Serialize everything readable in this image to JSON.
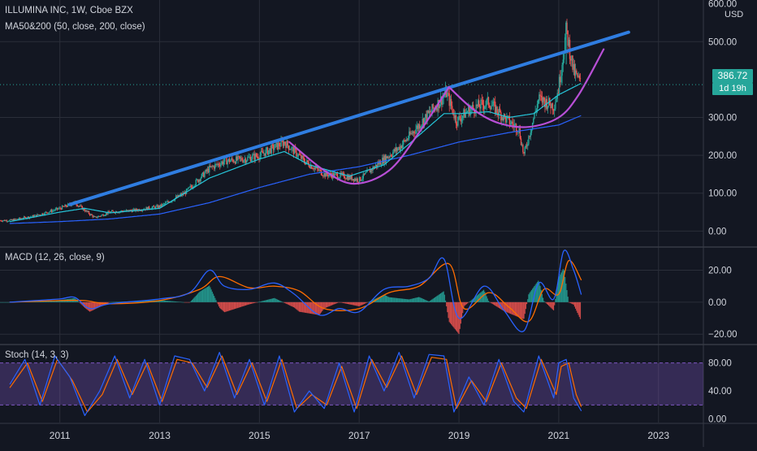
{
  "chart_data": [
    {
      "type": "candlestick",
      "pane": "price",
      "title": "ILLUMINA INC, 1W, Cboe BZX",
      "indicator": "MA50&200 (50, close, 200, close)",
      "currency": "USD",
      "y_ticks": [
        "0.00",
        "100.00",
        "200.00",
        "300.00",
        "500.00"
      ],
      "y_top_partial": "600.00",
      "ylim": [
        -40,
        610
      ],
      "last_price": "386.72",
      "countdown": "1d 19h",
      "colors": {
        "up": "#26a69a",
        "down": "#ef5350",
        "ma50": "#26c6da",
        "ma200": "#2962ff",
        "trendline": "#2f7de1",
        "arc": "#b84fd6"
      },
      "price_path": [
        [
          2010.0,
          28
        ],
        [
          2010.5,
          40
        ],
        [
          2011.0,
          60
        ],
        [
          2011.3,
          75
        ],
        [
          2011.5,
          55
        ],
        [
          2011.7,
          35
        ],
        [
          2012.0,
          50
        ],
        [
          2012.5,
          55
        ],
        [
          2013.0,
          65
        ],
        [
          2013.5,
          100
        ],
        [
          2014.0,
          165
        ],
        [
          2014.3,
          185
        ],
        [
          2014.7,
          190
        ],
        [
          2015.0,
          200
        ],
        [
          2015.5,
          235
        ],
        [
          2015.9,
          185
        ],
        [
          2016.3,
          150
        ],
        [
          2016.7,
          145
        ],
        [
          2017.0,
          135
        ],
        [
          2017.4,
          180
        ],
        [
          2017.8,
          220
        ],
        [
          2018.2,
          280
        ],
        [
          2018.6,
          340
        ],
        [
          2018.75,
          365
        ],
        [
          2018.95,
          290
        ],
        [
          2019.2,
          320
        ],
        [
          2019.6,
          340
        ],
        [
          2019.9,
          300
        ],
        [
          2020.2,
          270
        ],
        [
          2020.3,
          200
        ],
        [
          2020.6,
          350
        ],
        [
          2020.9,
          330
        ],
        [
          2021.0,
          380
        ],
        [
          2021.15,
          530
        ],
        [
          2021.3,
          420
        ],
        [
          2021.45,
          386.72
        ]
      ],
      "ma50": [
        [
          2010.0,
          25
        ],
        [
          2011.0,
          50
        ],
        [
          2011.5,
          60
        ],
        [
          2012.0,
          48
        ],
        [
          2013.0,
          60
        ],
        [
          2014.0,
          140
        ],
        [
          2015.0,
          190
        ],
        [
          2015.5,
          210
        ],
        [
          2016.0,
          175
        ],
        [
          2016.8,
          145
        ],
        [
          2017.5,
          175
        ],
        [
          2018.0,
          230
        ],
        [
          2018.7,
          310
        ],
        [
          2019.0,
          310
        ],
        [
          2019.6,
          315
        ],
        [
          2020.0,
          300
        ],
        [
          2020.5,
          310
        ],
        [
          2021.0,
          360
        ],
        [
          2021.45,
          390
        ]
      ],
      "ma200": [
        [
          2010.0,
          20
        ],
        [
          2011.0,
          25
        ],
        [
          2012.0,
          32
        ],
        [
          2013.0,
          45
        ],
        [
          2014.0,
          75
        ],
        [
          2015.0,
          115
        ],
        [
          2016.0,
          150
        ],
        [
          2017.0,
          170
        ],
        [
          2018.0,
          200
        ],
        [
          2019.0,
          235
        ],
        [
          2020.0,
          260
        ],
        [
          2021.0,
          280
        ],
        [
          2021.45,
          305
        ]
      ],
      "trendline": [
        [
          2011.2,
          70
        ],
        [
          2022.4,
          525
        ]
      ],
      "arc1": [
        [
          2015.6,
          235
        ],
        [
          2016.3,
          160
        ],
        [
          2016.9,
          125
        ],
        [
          2017.6,
          160
        ],
        [
          2018.2,
          260
        ],
        [
          2018.8,
          380
        ]
      ],
      "arc2": [
        [
          2018.8,
          380
        ],
        [
          2019.3,
          320
        ],
        [
          2019.8,
          285
        ],
        [
          2020.4,
          275
        ],
        [
          2021.0,
          300
        ],
        [
          2021.4,
          360
        ],
        [
          2021.9,
          480
        ]
      ]
    },
    {
      "type": "line",
      "pane": "macd",
      "title": "MACD (12, 26, close, 9)",
      "y_ticks": [
        "20.00",
        "0.00",
        "−20.00"
      ],
      "ylim": [
        -26,
        34
      ],
      "colors": {
        "macd": "#2962ff",
        "signal": "#ff6d00",
        "hist_up": "#26a69a",
        "hist_down": "#ef5350"
      },
      "macd": [
        [
          2010.0,
          0
        ],
        [
          2010.5,
          1
        ],
        [
          2011.0,
          2
        ],
        [
          2011.3,
          3
        ],
        [
          2011.6,
          -4
        ],
        [
          2012.0,
          -1
        ],
        [
          2013.0,
          2
        ],
        [
          2013.6,
          6
        ],
        [
          2014.0,
          20
        ],
        [
          2014.3,
          10
        ],
        [
          2014.8,
          8
        ],
        [
          2015.3,
          12
        ],
        [
          2015.7,
          5
        ],
        [
          2016.2,
          -8
        ],
        [
          2016.6,
          -4
        ],
        [
          2017.0,
          -6
        ],
        [
          2017.5,
          8
        ],
        [
          2018.0,
          10
        ],
        [
          2018.4,
          15
        ],
        [
          2018.7,
          27
        ],
        [
          2019.0,
          -10
        ],
        [
          2019.5,
          10
        ],
        [
          2019.9,
          -5
        ],
        [
          2020.3,
          -18
        ],
        [
          2020.6,
          12
        ],
        [
          2020.9,
          2
        ],
        [
          2021.1,
          32
        ],
        [
          2021.3,
          20
        ],
        [
          2021.45,
          5
        ]
      ],
      "signal": [
        [
          2010.0,
          0
        ],
        [
          2011.0,
          1
        ],
        [
          2011.5,
          1
        ],
        [
          2012.0,
          -1
        ],
        [
          2013.0,
          1
        ],
        [
          2013.8,
          8
        ],
        [
          2014.2,
          16
        ],
        [
          2014.8,
          9
        ],
        [
          2015.3,
          10
        ],
        [
          2015.8,
          7
        ],
        [
          2016.3,
          -4
        ],
        [
          2017.0,
          -4
        ],
        [
          2017.6,
          6
        ],
        [
          2018.2,
          10
        ],
        [
          2018.8,
          24
        ],
        [
          2019.1,
          -4
        ],
        [
          2019.6,
          6
        ],
        [
          2020.0,
          -3
        ],
        [
          2020.4,
          -12
        ],
        [
          2020.7,
          8
        ],
        [
          2021.0,
          5
        ],
        [
          2021.2,
          26
        ],
        [
          2021.45,
          14
        ]
      ]
    },
    {
      "type": "line",
      "pane": "stoch",
      "title": "Stoch (14, 3, 3)",
      "y_ticks": [
        "80.00",
        "40.00",
        "0.00"
      ],
      "bands": [
        20,
        80
      ],
      "ylim": [
        -5,
        105
      ],
      "colors": {
        "k": "#2962ff",
        "d": "#ff6d00",
        "band": "#7e57c2"
      },
      "k": [
        [
          2010.0,
          50
        ],
        [
          2010.3,
          85
        ],
        [
          2010.6,
          20
        ],
        [
          2010.9,
          90
        ],
        [
          2011.2,
          60
        ],
        [
          2011.5,
          5
        ],
        [
          2011.8,
          40
        ],
        [
          2012.1,
          90
        ],
        [
          2012.4,
          30
        ],
        [
          2012.7,
          85
        ],
        [
          2013.0,
          20
        ],
        [
          2013.3,
          90
        ],
        [
          2013.6,
          85
        ],
        [
          2013.9,
          40
        ],
        [
          2014.2,
          95
        ],
        [
          2014.5,
          30
        ],
        [
          2014.8,
          85
        ],
        [
          2015.1,
          20
        ],
        [
          2015.4,
          90
        ],
        [
          2015.7,
          10
        ],
        [
          2016.0,
          40
        ],
        [
          2016.3,
          15
        ],
        [
          2016.6,
          80
        ],
        [
          2016.9,
          10
        ],
        [
          2017.2,
          90
        ],
        [
          2017.5,
          40
        ],
        [
          2017.8,
          95
        ],
        [
          2018.1,
          30
        ],
        [
          2018.4,
          92
        ],
        [
          2018.7,
          90
        ],
        [
          2018.9,
          10
        ],
        [
          2019.2,
          60
        ],
        [
          2019.5,
          20
        ],
        [
          2019.8,
          85
        ],
        [
          2020.1,
          25
        ],
        [
          2020.3,
          10
        ],
        [
          2020.6,
          90
        ],
        [
          2020.9,
          30
        ],
        [
          2021.0,
          80
        ],
        [
          2021.15,
          85
        ],
        [
          2021.3,
          30
        ],
        [
          2021.45,
          12
        ]
      ],
      "d": [
        [
          2010.0,
          45
        ],
        [
          2010.35,
          80
        ],
        [
          2010.65,
          25
        ],
        [
          2010.95,
          85
        ],
        [
          2011.25,
          55
        ],
        [
          2011.55,
          10
        ],
        [
          2011.85,
          35
        ],
        [
          2012.15,
          85
        ],
        [
          2012.45,
          35
        ],
        [
          2012.75,
          80
        ],
        [
          2013.05,
          25
        ],
        [
          2013.35,
          85
        ],
        [
          2013.65,
          80
        ],
        [
          2013.95,
          45
        ],
        [
          2014.25,
          90
        ],
        [
          2014.55,
          35
        ],
        [
          2014.85,
          80
        ],
        [
          2015.15,
          25
        ],
        [
          2015.45,
          85
        ],
        [
          2015.75,
          15
        ],
        [
          2016.05,
          35
        ],
        [
          2016.35,
          20
        ],
        [
          2016.65,
          75
        ],
        [
          2016.95,
          15
        ],
        [
          2017.25,
          85
        ],
        [
          2017.55,
          45
        ],
        [
          2017.85,
          90
        ],
        [
          2018.15,
          35
        ],
        [
          2018.45,
          88
        ],
        [
          2018.75,
          85
        ],
        [
          2018.95,
          15
        ],
        [
          2019.25,
          55
        ],
        [
          2019.55,
          25
        ],
        [
          2019.85,
          80
        ],
        [
          2020.15,
          30
        ],
        [
          2020.35,
          15
        ],
        [
          2020.65,
          85
        ],
        [
          2020.95,
          35
        ],
        [
          2021.05,
          75
        ],
        [
          2021.2,
          80
        ],
        [
          2021.35,
          35
        ],
        [
          2021.45,
          18
        ]
      ]
    }
  ],
  "time_axis": {
    "labels": [
      "2011",
      "2013",
      "2015",
      "2017",
      "2019",
      "2021",
      "2023"
    ],
    "positions": [
      2011,
      2013,
      2015,
      2017,
      2019,
      2021,
      2023
    ],
    "range": [
      2009.8,
      2023.9
    ]
  }
}
